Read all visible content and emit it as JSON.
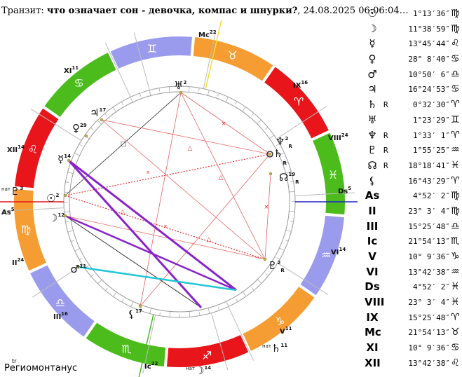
{
  "title": {
    "prefix": "Транзит: ",
    "bold": "что означает сон - девочка, компас и шнурки?",
    "suffix": ", 24.08.2025 06:06:04…"
  },
  "footer": {
    "sup": "tr",
    "label": "Региомонтанус"
  },
  "positions": [
    {
      "glyph": "☉",
      "name": "sun",
      "retro": "",
      "pos": "1°13′36″",
      "sign": "♍"
    },
    {
      "glyph": "☽",
      "name": "moon",
      "retro": "",
      "pos": "11°38′59″",
      "sign": "♍"
    },
    {
      "glyph": "☿",
      "name": "mercury",
      "retro": "",
      "pos": "13°45′44″",
      "sign": "♌"
    },
    {
      "glyph": "♀",
      "name": "venus",
      "retro": "",
      "pos": "28° 8′40″",
      "sign": "♋"
    },
    {
      "glyph": "♂",
      "name": "mars",
      "retro": "",
      "pos": "10°50′ 6″",
      "sign": "♎"
    },
    {
      "glyph": "♃",
      "name": "jupiter",
      "retro": "",
      "pos": "16°24′53″",
      "sign": "♋"
    },
    {
      "glyph": "♄",
      "name": "saturn",
      "retro": "R",
      "pos": "0°32′30″",
      "sign": "♈"
    },
    {
      "glyph": "♅",
      "name": "uranus",
      "retro": "",
      "pos": "1°23′29″",
      "sign": "♊"
    },
    {
      "glyph": "♆",
      "name": "neptune",
      "retro": "R",
      "pos": "1°33′ 1″",
      "sign": "♈"
    },
    {
      "glyph": "♇",
      "name": "pluto",
      "retro": "R",
      "pos": "1°55′25″",
      "sign": "♒"
    },
    {
      "glyph": "☊",
      "name": "node",
      "retro": "R",
      "pos": "18°18′41″",
      "sign": "♓"
    },
    {
      "glyph": "⚸",
      "name": "lilith",
      "retro": "",
      "pos": "16°43′29″",
      "sign": "♈"
    },
    {
      "glyph": "As",
      "name": "ascendant",
      "retro": "",
      "pos": "4°52′ 2″",
      "sign": "♍"
    },
    {
      "glyph": "II",
      "name": "house-2",
      "retro": "",
      "pos": "23° 3′ 4″",
      "sign": "♍"
    },
    {
      "glyph": "III",
      "name": "house-3",
      "retro": "",
      "pos": "15°25′48″",
      "sign": "♎"
    },
    {
      "glyph": "Ic",
      "name": "imum-coeli",
      "retro": "",
      "pos": "21°54′13″",
      "sign": "♏"
    },
    {
      "glyph": "V",
      "name": "house-5",
      "retro": "",
      "pos": "10° 9′36″",
      "sign": "♑"
    },
    {
      "glyph": "VI",
      "name": "house-6",
      "retro": "",
      "pos": "13°42′38″",
      "sign": "♒"
    },
    {
      "glyph": "Ds",
      "name": "descendant",
      "retro": "",
      "pos": "4°52′ 2″",
      "sign": "♓"
    },
    {
      "glyph": "VIII",
      "name": "house-8",
      "retro": "",
      "pos": "23° 3′ 4″",
      "sign": "♓"
    },
    {
      "glyph": "IX",
      "name": "house-9",
      "retro": "",
      "pos": "15°25′48″",
      "sign": "♈"
    },
    {
      "glyph": "Mc",
      "name": "midheaven",
      "retro": "",
      "pos": "21°54′13″",
      "sign": "♉"
    },
    {
      "glyph": "XI",
      "name": "house-11",
      "retro": "",
      "pos": "10° 9′36″",
      "sign": "♋"
    },
    {
      "glyph": "XII",
      "name": "house-12",
      "retro": "",
      "pos": "13°42′38″",
      "sign": "♌"
    }
  ],
  "chart": {
    "zodiac_ring": [
      {
        "glyph": "♈",
        "color": "#e8151b",
        "name": "aries"
      },
      {
        "glyph": "♉",
        "color": "#f59d32",
        "name": "taurus"
      },
      {
        "glyph": "♊",
        "color": "#9b9bee",
        "name": "gemini"
      },
      {
        "glyph": "♋",
        "color": "#4cbc1c",
        "name": "cancer"
      },
      {
        "glyph": "♌",
        "color": "#e8151b",
        "name": "leo"
      },
      {
        "glyph": "♍",
        "color": "#f59d32",
        "name": "virgo"
      },
      {
        "glyph": "♎",
        "color": "#9b9bee",
        "name": "libra"
      },
      {
        "glyph": "♏",
        "color": "#4cbc1c",
        "name": "scorpio"
      },
      {
        "glyph": "♐",
        "color": "#e8151b",
        "name": "sagittarius"
      },
      {
        "glyph": "♑",
        "color": "#f59d32",
        "name": "capricorn"
      },
      {
        "glyph": "♒",
        "color": "#9b9bee",
        "name": "aquarius"
      },
      {
        "glyph": "♓",
        "color": "#4cbc1c",
        "name": "pisces"
      }
    ],
    "house_labels": [
      {
        "label": "Mc",
        "num": "22"
      },
      {
        "label": "IX",
        "num": "16"
      },
      {
        "label": "VIII",
        "num": "24"
      },
      {
        "label": "Ds",
        "num": "5"
      },
      {
        "label": "VI",
        "num": "14"
      },
      {
        "label": "V",
        "num": "11"
      },
      {
        "label": "Ic",
        "num": "22"
      },
      {
        "label": "III",
        "num": "16"
      },
      {
        "label": "II",
        "num": "24"
      },
      {
        "label": "As",
        "num": "5"
      },
      {
        "label": "XII",
        "num": "14"
      },
      {
        "label": "XI",
        "num": "11"
      }
    ],
    "planet_labels": [
      {
        "glyph": "♅",
        "num": "2",
        "retro": ""
      },
      {
        "glyph": "♃",
        "num": "17",
        "retro": ""
      },
      {
        "glyph": "♀",
        "num": "29",
        "retro": ""
      },
      {
        "glyph": "☿",
        "num": "14",
        "retro": ""
      },
      {
        "glyph": "☉",
        "num": "2",
        "retro": ""
      },
      {
        "glyph": "☽",
        "num": "12",
        "retro": ""
      },
      {
        "glyph": "♂",
        "num": "11",
        "retro": ""
      },
      {
        "glyph": "⚸",
        "num": "17",
        "retro": ""
      },
      {
        "glyph": "♆",
        "num": "2",
        "retro": "R"
      },
      {
        "glyph": "♄",
        "num": "",
        "retro": "R"
      },
      {
        "glyph": "☊",
        "num": "19",
        "retro": "R"
      },
      {
        "glyph": "♇",
        "num": "2",
        "retro": "R"
      }
    ],
    "natal_labels": [
      {
        "tag": "нат",
        "glyph": "♇",
        "num": "3"
      },
      {
        "tag": "нат",
        "glyph": "♄",
        "num": "11"
      },
      {
        "tag": "нат",
        "glyph": "☽",
        "num": "14"
      }
    ]
  }
}
